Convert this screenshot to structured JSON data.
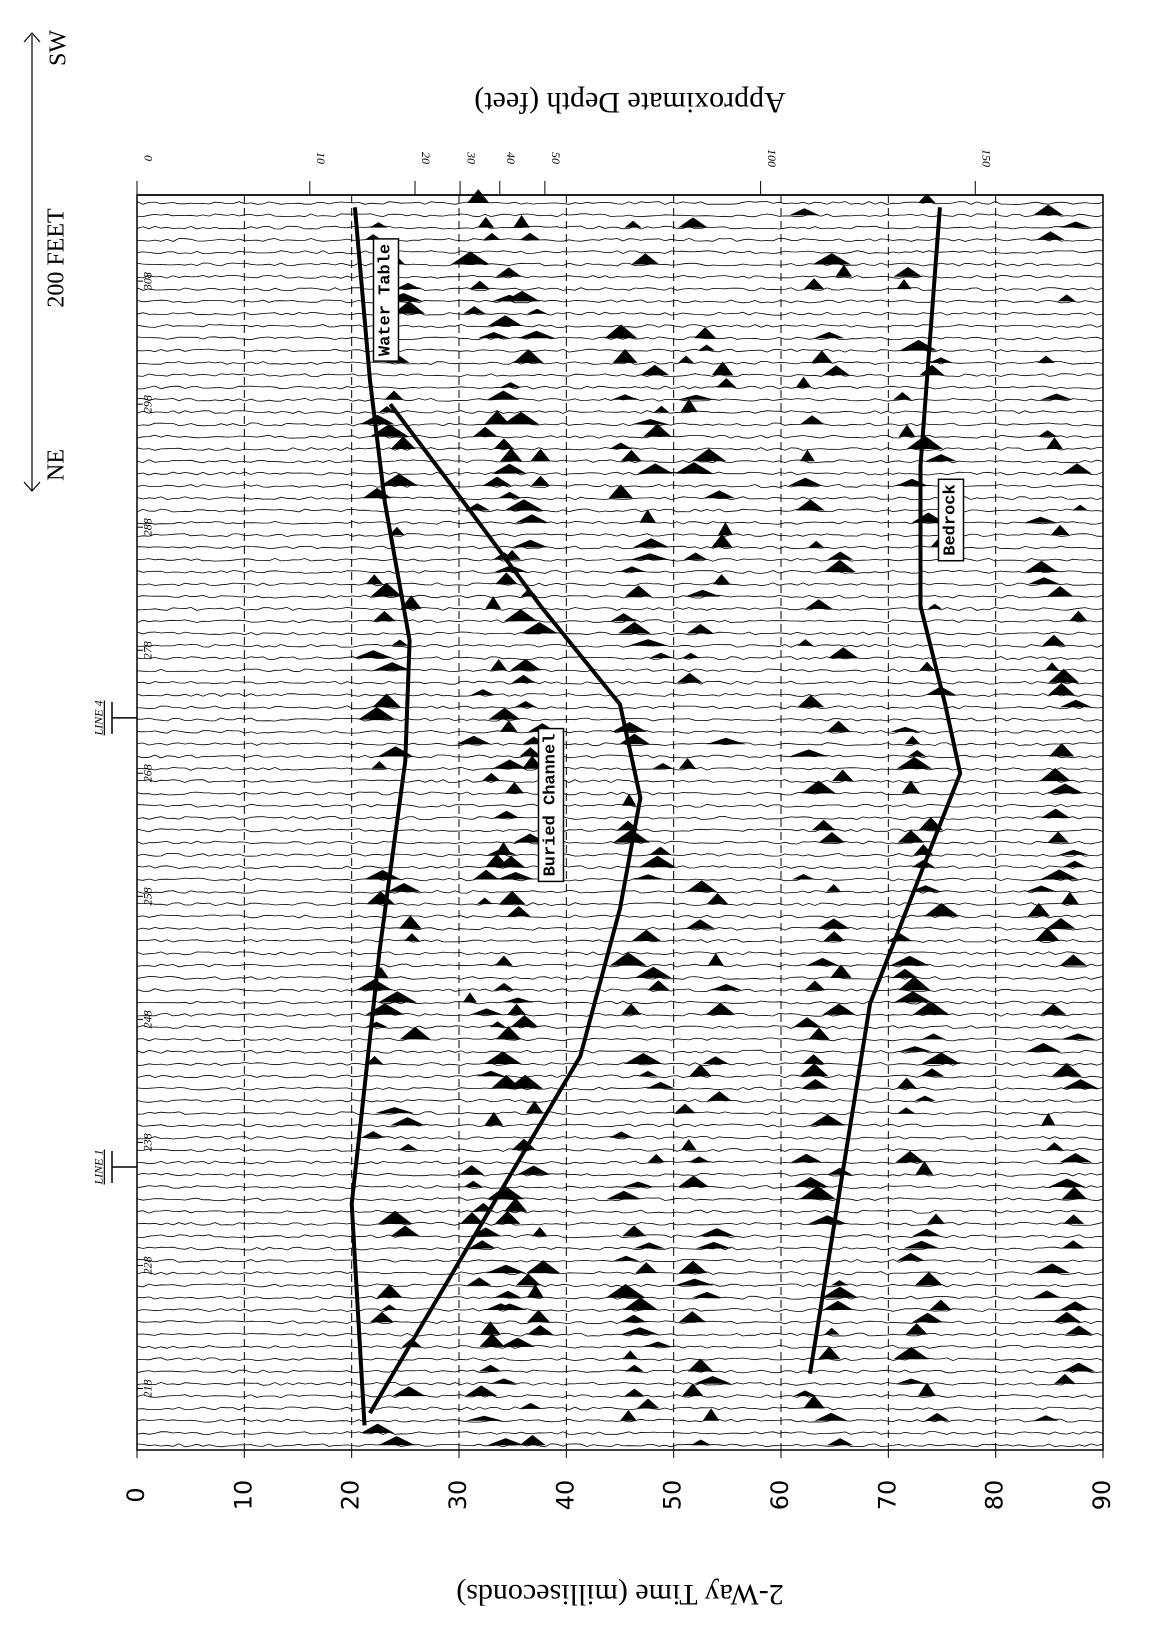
{
  "chart_data": {
    "type": "line",
    "xlabel": "2-Way Time (milliseconds)",
    "x2label": "Approximate Depth (feet)",
    "xlim": [
      0,
      90
    ],
    "xticks": [
      0,
      10,
      20,
      30,
      40,
      50,
      60,
      70,
      80,
      90
    ],
    "x2ticks": [
      {
        "value": 0,
        "label": "0"
      },
      {
        "value": 16.1,
        "label": "10"
      },
      {
        "value": 25.9,
        "label": "20"
      },
      {
        "value": 30.1,
        "label": "30"
      },
      {
        "value": 33.8,
        "label": "40"
      },
      {
        "value": 38.0,
        "label": "50"
      },
      {
        "value": 58.1,
        "label": "100"
      },
      {
        "value": 78.1,
        "label": "150"
      }
    ],
    "ylim": [
      213,
      315
    ],
    "yticks": [
      218,
      228,
      238,
      248,
      258,
      268,
      278,
      288,
      298,
      308
    ],
    "grid": true,
    "scale_label": "200 FEET",
    "direction": {
      "start": "NE",
      "end": "SW"
    },
    "line_markers": [
      {
        "label": "LINE 4",
        "trace": 272.5
      },
      {
        "label": "LINE 1",
        "trace": 236
      }
    ],
    "series": [
      {
        "name": "Water Table",
        "color": "#000000",
        "x": [
          215,
          233,
          253.6,
          269,
          278.8,
          290,
          300,
          314
        ],
        "values": [
          21.2,
          20.0,
          22.6,
          25.0,
          25.4,
          23.1,
          21.7,
          20.3
        ]
      },
      {
        "name": "Buried Channel",
        "color": "#000000",
        "x": [
          216,
          245,
          257,
          266,
          273.6,
          281.6,
          291.5,
          298
        ],
        "values": [
          21.7,
          41.3,
          45.0,
          46.9,
          45.0,
          37.6,
          29.2,
          23.6
        ]
      },
      {
        "name": "Bedrock",
        "color": "#000000",
        "x": [
          219.2,
          249.3,
          259.8,
          268,
          273.6,
          281.6,
          293,
          314
        ],
        "values": [
          62.7,
          68.3,
          73.0,
          76.7,
          75.3,
          73.0,
          73.0,
          74.8
        ]
      }
    ]
  }
}
